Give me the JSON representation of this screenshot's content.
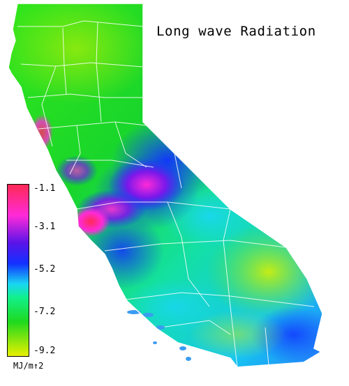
{
  "title": "Long wave Radiation",
  "legend": {
    "labels": [
      "-1.1",
      "-3.1",
      "-5.2",
      "-7.2",
      "-9.2"
    ],
    "unit": "MJ/m↑2"
  },
  "colors": {
    "max": "#ff2a55",
    "magenta": "#ff2ad8",
    "violet": "#5a14e8",
    "blue": "#1230ff",
    "cyan": "#19d6f3",
    "aqua": "#12f08a",
    "green": "#1ed91e",
    "min": "#e8f000",
    "border": "#ffffff"
  }
}
